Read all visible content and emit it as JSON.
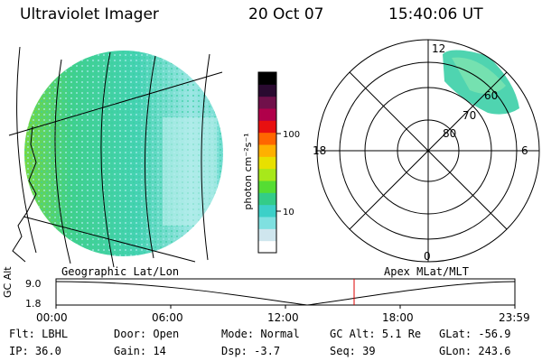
{
  "header": {
    "instrument": "Ultraviolet Imager",
    "date": "20 Oct 07",
    "time": "15:40:06 UT"
  },
  "colorbar": {
    "unit_label": "photon cm⁻²s⁻¹",
    "ticks": [
      "100",
      "10"
    ],
    "scale": "log",
    "colors": [
      "#ffffff",
      "#cfe6ee",
      "#7fe0e0",
      "#3cd0c8",
      "#33cc88",
      "#55dd33",
      "#a8e81a",
      "#e8e000",
      "#ffb000",
      "#ff6600",
      "#e81010",
      "#b0004a",
      "#70104a",
      "#2a0a30",
      "#000000"
    ]
  },
  "polar_plot": {
    "mlt_labels": [
      "12",
      "18",
      "6",
      "0"
    ],
    "mlat_labels": [
      "80",
      "70",
      "60"
    ]
  },
  "projections": {
    "left": "Geographic Lat/Lon",
    "right": "Apex MLat/MLT"
  },
  "altitude_plot": {
    "ylabel": "GC Alt",
    "yticks": [
      "9.0",
      "1.8"
    ],
    "xticks": [
      "00:00",
      "06:00",
      "12:00",
      "18:00",
      "23:59"
    ],
    "marker_time": "15:40",
    "marker_color": "#dd0000"
  },
  "status": {
    "flt_label": "Flt:",
    "flt_value": "LBHL",
    "ip_label": "IP:",
    "ip_value": "36.0",
    "door_label": "Door:",
    "door_value": "Open",
    "gain_label": "Gain:",
    "gain_value": "14",
    "mode_label": "Mode:",
    "mode_value": "Normal",
    "dsp_label": "Dsp:",
    "dsp_value": "-3.7",
    "gcalt_label": "GC Alt:",
    "gcalt_value": "5.1 Re",
    "seq_label": "Seq:",
    "seq_value": "39",
    "glat_label": "GLat:",
    "glat_value": "-56.9",
    "glon_label": "GLon:",
    "glon_value": "243.6"
  }
}
